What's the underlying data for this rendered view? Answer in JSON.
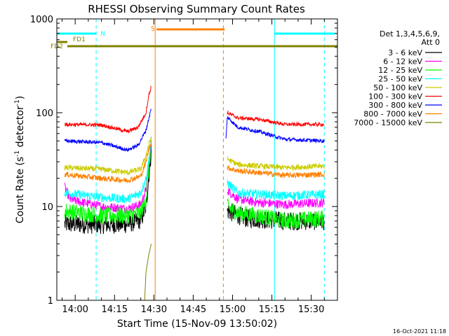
{
  "chart_data": {
    "type": "line",
    "title": "RHESSI Observing Summary Count Rates",
    "xlabel": "Start Time (15-Nov-09 13:50:02)",
    "ylabel": "Count Rate (s",
    "ylabel_sup1": "-1",
    "ylabel_mid": " detector",
    "ylabel_sup2": "-1",
    "ylabel_end": ")",
    "yscale": "log",
    "ylim": [
      1,
      1000
    ],
    "xlim_minutes": [
      -7,
      100
    ],
    "x_ticks": [
      "14:00",
      "14:15",
      "14:30",
      "14:45",
      "15:00",
      "15:15",
      "15:30"
    ],
    "y_ticks": [
      "1",
      "10",
      "100",
      "1000"
    ],
    "legend_title": [
      "Det 1,3,4,5,6,9,",
      "Att 0"
    ],
    "footer_date": "16-Oct-2021 11:18",
    "x_unit_note": "x in minutes relative to 14:00 UT",
    "series": [
      {
        "name": "3 - 6 keV",
        "color": "#000000",
        "noise": 0.1,
        "points": [
          [
            -4,
            6.5
          ],
          [
            10,
            6.4
          ],
          [
            20,
            6.5
          ],
          [
            25,
            7.2
          ],
          [
            27,
            10
          ],
          [
            28,
            20
          ],
          [
            29,
            40
          ],
          [
            58,
            9
          ],
          [
            65,
            7.5
          ],
          [
            80,
            7
          ],
          [
            95,
            7
          ]
        ]
      },
      {
        "name": "6 - 12 keV",
        "color": "#ff00ff",
        "noise": 0.05,
        "points": [
          [
            -4,
            16
          ],
          [
            -2,
            12
          ],
          [
            0,
            11.5
          ],
          [
            10,
            10
          ],
          [
            20,
            9.5
          ],
          [
            25,
            10.5
          ],
          [
            27,
            15
          ],
          [
            28,
            25
          ],
          [
            29,
            45
          ],
          [
            58,
            15
          ],
          [
            62,
            12
          ],
          [
            70,
            11
          ],
          [
            80,
            10.5
          ],
          [
            95,
            11
          ]
        ]
      },
      {
        "name": "12 - 25 keV",
        "color": "#00ff00",
        "noise": 0.09,
        "points": [
          [
            -4,
            9
          ],
          [
            10,
            8
          ],
          [
            20,
            8
          ],
          [
            25,
            8.5
          ],
          [
            27,
            12
          ],
          [
            28,
            25
          ],
          [
            29,
            50
          ],
          [
            58,
            10
          ],
          [
            62,
            8.5
          ],
          [
            70,
            8
          ],
          [
            80,
            7
          ],
          [
            95,
            7.5
          ]
        ]
      },
      {
        "name": "25 - 50 keV",
        "color": "#00ffff",
        "noise": 0.05,
        "points": [
          [
            -4,
            14
          ],
          [
            10,
            12.5
          ],
          [
            20,
            12
          ],
          [
            25,
            14
          ],
          [
            27,
            20
          ],
          [
            28,
            30
          ],
          [
            29,
            50
          ],
          [
            58,
            18
          ],
          [
            62,
            14
          ],
          [
            70,
            13.5
          ],
          [
            80,
            13
          ],
          [
            95,
            13.5
          ]
        ]
      },
      {
        "name": "50 - 100 keV",
        "color": "#cccc00",
        "noise": 0.03,
        "points": [
          [
            -4,
            26
          ],
          [
            10,
            25
          ],
          [
            20,
            23
          ],
          [
            25,
            25
          ],
          [
            27,
            35
          ],
          [
            28,
            45
          ],
          [
            29,
            55
          ],
          [
            58,
            32
          ],
          [
            62,
            28
          ],
          [
            70,
            27
          ],
          [
            80,
            26
          ],
          [
            95,
            27
          ]
        ]
      },
      {
        "name": "100 - 300 keV",
        "color": "#ff0000",
        "noise": 0.02,
        "points": [
          [
            -4,
            75
          ],
          [
            10,
            74
          ],
          [
            20,
            63
          ],
          [
            24,
            70
          ],
          [
            27,
            100
          ],
          [
            28,
            150
          ],
          [
            29,
            190
          ],
          [
            58,
            100
          ],
          [
            62,
            88
          ],
          [
            70,
            85
          ],
          [
            80,
            75
          ],
          [
            95,
            75
          ]
        ]
      },
      {
        "name": "300 - 800 keV",
        "color": "#0000ff",
        "noise": 0.02,
        "points": [
          [
            -4,
            50
          ],
          [
            10,
            48
          ],
          [
            20,
            40
          ],
          [
            24,
            45
          ],
          [
            27,
            65
          ],
          [
            28,
            85
          ],
          [
            29,
            110
          ],
          [
            57.5,
            52
          ],
          [
            58,
            90
          ],
          [
            62,
            70
          ],
          [
            70,
            63
          ],
          [
            80,
            52
          ],
          [
            95,
            50
          ]
        ]
      },
      {
        "name": "800 - 7000 keV",
        "color": "#ff8000",
        "noise": 0.03,
        "points": [
          [
            -4,
            22
          ],
          [
            10,
            20
          ],
          [
            20,
            19
          ],
          [
            25,
            21
          ],
          [
            27,
            30
          ],
          [
            28,
            40
          ],
          [
            29,
            50
          ],
          [
            58,
            26
          ],
          [
            62,
            24
          ],
          [
            70,
            23
          ],
          [
            80,
            21.5
          ],
          [
            95,
            22
          ]
        ]
      },
      {
        "name": "7000 - 15000 keV",
        "color": "#808000",
        "noise": 0,
        "points": [
          [
            26.5,
            1
          ],
          [
            27,
            2
          ],
          [
            28,
            3
          ],
          [
            29,
            4
          ]
        ]
      }
    ],
    "flags": [
      {
        "label": "N",
        "color": "#00ffff",
        "label_color": "#00ffff",
        "ranges": [
          [
            -7,
            8
          ],
          [
            76,
            99
          ]
        ]
      },
      {
        "label": "S",
        "color": "#ff8000",
        "label_color": "#ff8000",
        "ranges": [
          [
            31,
            57
          ]
        ]
      },
      {
        "label": "FD1",
        "color": "#808000",
        "label_color": "#808000",
        "ranges": [
          [
            -7,
            -3
          ]
        ]
      },
      {
        "label": "FD2",
        "color": "#808000",
        "label_color": "#808000",
        "ranges": [
          [
            -3,
            100
          ]
        ]
      }
    ],
    "vlines": [
      {
        "x": -7,
        "color": "#00ffff",
        "style": "solid"
      },
      {
        "x": 8,
        "color": "#00ffff",
        "style": "dashed"
      },
      {
        "x": 30.5,
        "color": "#ff8000",
        "style": "solid"
      },
      {
        "x": 56.5,
        "color": "#ff8000",
        "style": "dashed"
      },
      {
        "x": 76,
        "color": "#00ffff",
        "style": "solid"
      },
      {
        "x": 95,
        "color": "#00ffff",
        "style": "dashed"
      }
    ]
  }
}
